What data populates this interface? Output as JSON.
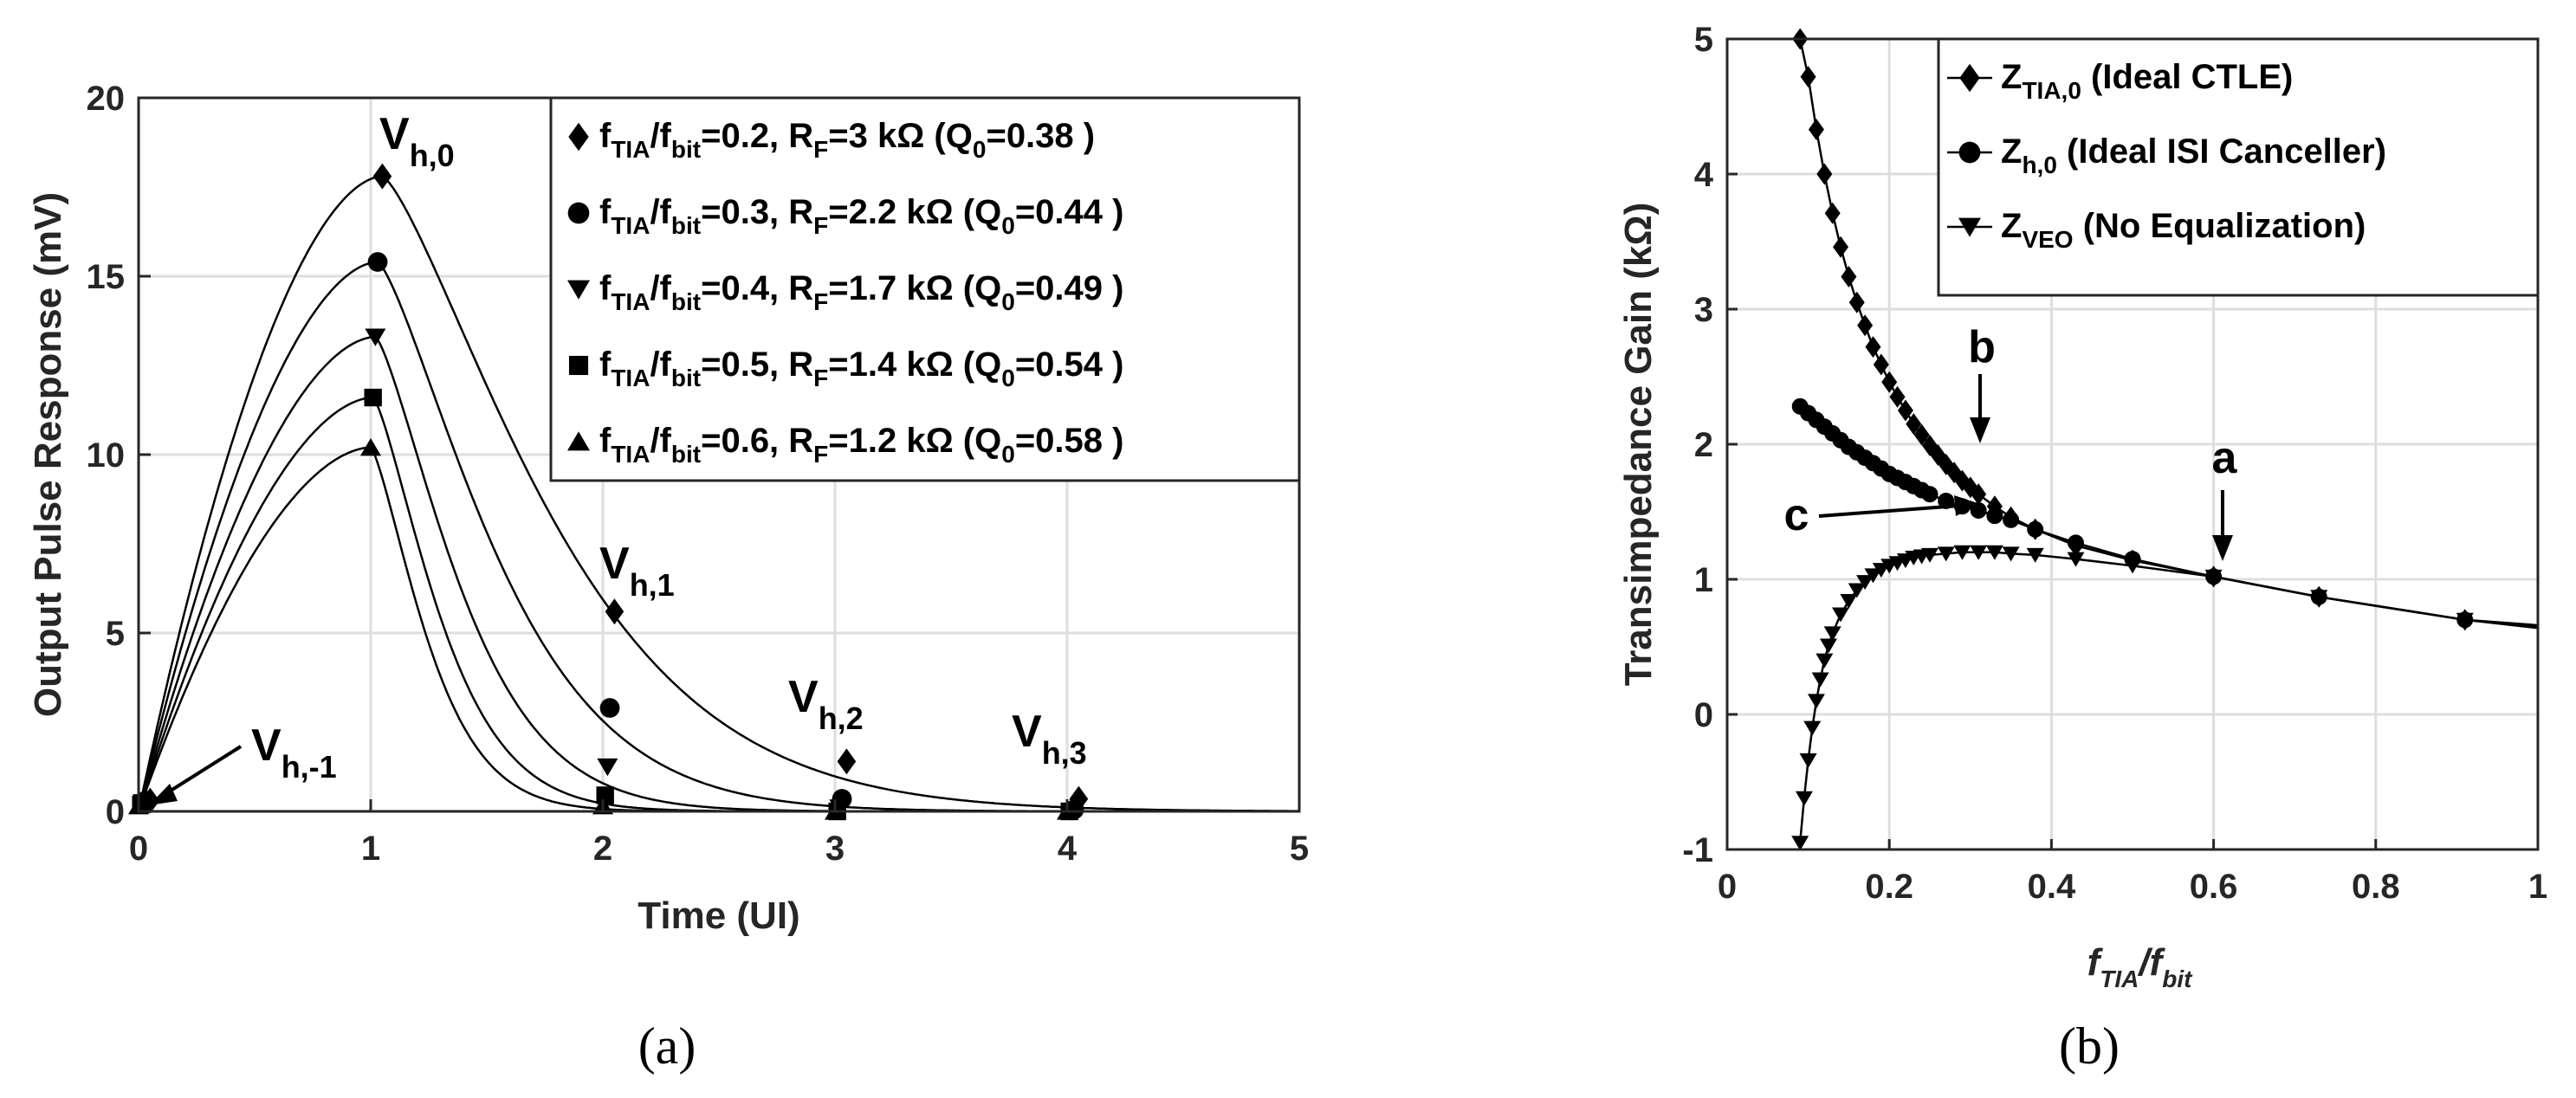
{
  "chart_data": [
    {
      "type": "line",
      "panel_label": "(a)",
      "xlabel": "Time (UI)",
      "ylabel": "Output Pulse Response (mV)",
      "xlim": [
        0,
        5
      ],
      "ylim": [
        0,
        20
      ],
      "xticks": [
        "0",
        "1",
        "2",
        "3",
        "4",
        "5"
      ],
      "yticks": [
        "0",
        "5",
        "10",
        "15",
        "20"
      ],
      "grid": true,
      "legend_position": "top-right",
      "series": [
        {
          "name_main": "f",
          "name_sub1": "TIA",
          "name_mid": "/f",
          "name_sub2": "bit",
          "name_val": "=0.2, R",
          "name_sub3": "F",
          "name_tail": "=3 kΩ    (Q",
          "name_sub4": "0",
          "name_end": "=0.38 )",
          "marker": "diamond",
          "peak_t": 1.05,
          "peak_v": 17.8,
          "rise": 0.45,
          "decay": 0.82,
          "markers": [
            [
              0.05,
              0.3
            ],
            [
              1.05,
              17.8
            ],
            [
              2.05,
              5.6
            ],
            [
              3.05,
              1.4
            ],
            [
              4.05,
              0.35
            ]
          ]
        },
        {
          "name_main": "f",
          "name_sub1": "TIA",
          "name_mid": "/f",
          "name_sub2": "bit",
          "name_val": "=0.3, R",
          "name_sub3": "F",
          "name_tail": "=2.2 kΩ (Q",
          "name_sub4": "0",
          "name_end": "=0.44 )",
          "marker": "circle",
          "peak_t": 1.03,
          "peak_v": 15.4,
          "rise": 0.42,
          "decay": 0.58,
          "markers": [
            [
              0.03,
              0.3
            ],
            [
              1.03,
              15.4
            ],
            [
              2.03,
              2.9
            ],
            [
              3.03,
              0.35
            ],
            [
              4.03,
              0.05
            ]
          ]
        },
        {
          "name_main": "f",
          "name_sub1": "TIA",
          "name_mid": "/f",
          "name_sub2": "bit",
          "name_val": "=0.4, R",
          "name_sub3": "F",
          "name_tail": "=1.7 kΩ (Q",
          "name_sub4": "0",
          "name_end": "=0.49 )",
          "marker": "triangle-down",
          "peak_t": 1.02,
          "peak_v": 13.3,
          "rise": 0.4,
          "decay": 0.42,
          "markers": [
            [
              0.02,
              0.25
            ],
            [
              1.02,
              13.3
            ],
            [
              2.02,
              1.25
            ],
            [
              3.02,
              0.1
            ],
            [
              4.02,
              0.0
            ]
          ]
        },
        {
          "name_main": "f",
          "name_sub1": "TIA",
          "name_mid": "/f",
          "name_sub2": "bit",
          "name_val": "=0.5, R",
          "name_sub3": "F",
          "name_tail": "=1.4 kΩ (Q",
          "name_sub4": "0",
          "name_end": "=0.54 )",
          "marker": "square",
          "peak_t": 1.01,
          "peak_v": 11.6,
          "rise": 0.38,
          "decay": 0.33,
          "markers": [
            [
              0.01,
              0.2
            ],
            [
              1.01,
              11.6
            ],
            [
              2.01,
              0.45
            ],
            [
              3.01,
              0.0
            ],
            [
              4.01,
              0.0
            ]
          ]
        },
        {
          "name_main": "f",
          "name_sub1": "TIA",
          "name_mid": "/f",
          "name_sub2": "bit",
          "name_val": "=0.6, R",
          "name_sub3": "F",
          "name_tail": "=1.2 kΩ (Q",
          "name_sub4": "0",
          "name_end": "=0.58 )",
          "marker": "triangle-up",
          "peak_t": 1.0,
          "peak_v": 10.2,
          "rise": 0.36,
          "decay": 0.28,
          "markers": [
            [
              0.0,
              0.15
            ],
            [
              1.0,
              10.2
            ],
            [
              2.0,
              0.15
            ],
            [
              3.0,
              0.0
            ],
            [
              4.0,
              0.0
            ]
          ]
        }
      ],
      "annotations": [
        {
          "main": "V",
          "sub": "h,0"
        },
        {
          "main": "V",
          "sub": "h,1"
        },
        {
          "main": "V",
          "sub": "h,2"
        },
        {
          "main": "V",
          "sub": "h,3"
        },
        {
          "main": "V",
          "sub": "h,-1"
        }
      ]
    },
    {
      "type": "line",
      "panel_label": "(b)",
      "xlabel_main1": "f",
      "xlabel_sub1": "TIA",
      "xlabel_main2": "/f",
      "xlabel_sub2": "bit",
      "ylabel": "Transimpedance Gain (kΩ)",
      "xlim": [
        0,
        1
      ],
      "ylim": [
        -1,
        5
      ],
      "xticks": [
        "0",
        "0.2",
        "0.4",
        "0.6",
        "0.8",
        "1"
      ],
      "yticks": [
        "-1",
        "0",
        "1",
        "2",
        "3",
        "4",
        "5"
      ],
      "grid": true,
      "legend_position": "top-right",
      "series": [
        {
          "name_main": "Z",
          "name_sub": "TIA,0",
          "name_tail": " (Ideal CTLE)",
          "marker": "diamond",
          "x": [
            0.09,
            0.1,
            0.11,
            0.12,
            0.13,
            0.14,
            0.15,
            0.16,
            0.17,
            0.18,
            0.19,
            0.2,
            0.21,
            0.22,
            0.23,
            0.24,
            0.25,
            0.26,
            0.27,
            0.28,
            0.29,
            0.3,
            0.31,
            0.33,
            0.35,
            0.38,
            0.43,
            0.5,
            0.6,
            0.73,
            0.91
          ],
          "y": [
            5.0,
            4.72,
            4.33,
            4.0,
            3.71,
            3.46,
            3.24,
            3.05,
            2.88,
            2.72,
            2.59,
            2.46,
            2.35,
            2.25,
            2.15,
            2.07,
            1.99,
            1.92,
            1.85,
            1.79,
            1.73,
            1.68,
            1.63,
            1.54,
            1.46,
            1.37,
            1.25,
            1.14,
            1.02,
            0.87,
            0.7
          ]
        },
        {
          "name_main": "Z",
          "name_sub": "h,0",
          "name_tail": " (Ideal ISI Canceller)",
          "marker": "circle",
          "x": [
            0.09,
            0.1,
            0.11,
            0.12,
            0.13,
            0.14,
            0.15,
            0.16,
            0.17,
            0.18,
            0.19,
            0.2,
            0.21,
            0.22,
            0.23,
            0.24,
            0.25,
            0.27,
            0.29,
            0.31,
            0.33,
            0.35,
            0.38,
            0.43,
            0.5,
            0.6,
            0.73,
            0.91
          ],
          "y": [
            2.28,
            2.23,
            2.18,
            2.13,
            2.08,
            2.03,
            1.98,
            1.94,
            1.9,
            1.86,
            1.82,
            1.78,
            1.75,
            1.72,
            1.69,
            1.66,
            1.63,
            1.58,
            1.54,
            1.51,
            1.47,
            1.44,
            1.37,
            1.27,
            1.15,
            1.02,
            0.87,
            0.7
          ]
        },
        {
          "name_main": "Z",
          "name_sub": "VEO",
          "name_tail": " (No Equalization)",
          "marker": "triangle-down",
          "x": [
            0.09,
            0.095,
            0.1,
            0.105,
            0.11,
            0.115,
            0.12,
            0.125,
            0.13,
            0.14,
            0.15,
            0.16,
            0.17,
            0.18,
            0.19,
            0.2,
            0.21,
            0.22,
            0.23,
            0.24,
            0.25,
            0.27,
            0.29,
            0.31,
            0.33,
            0.35,
            0.38,
            0.43,
            0.5,
            0.6,
            0.73,
            0.91
          ],
          "y": [
            -0.95,
            -0.62,
            -0.34,
            -0.1,
            0.1,
            0.26,
            0.4,
            0.51,
            0.6,
            0.74,
            0.84,
            0.92,
            0.98,
            1.03,
            1.07,
            1.1,
            1.12,
            1.14,
            1.16,
            1.17,
            1.18,
            1.19,
            1.2,
            1.2,
            1.2,
            1.19,
            1.18,
            1.15,
            1.1,
            1.02,
            0.87,
            0.7
          ]
        }
      ],
      "annotations": [
        "a",
        "b",
        "c"
      ]
    }
  ]
}
